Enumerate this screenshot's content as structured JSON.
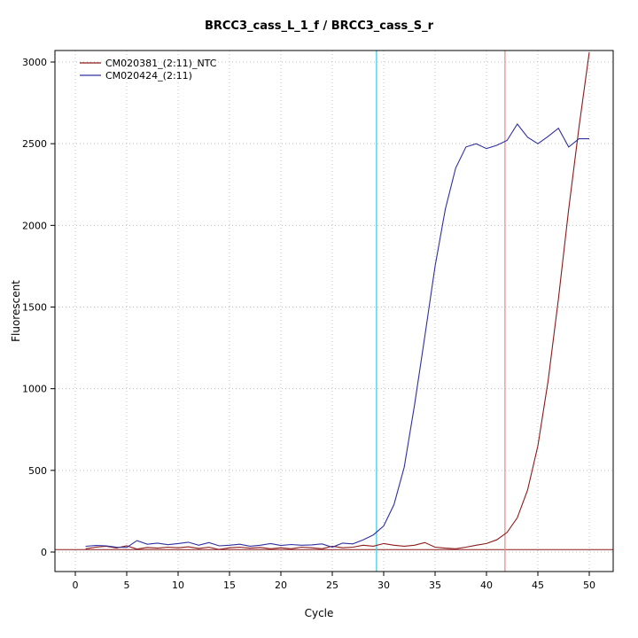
{
  "chart_data": {
    "type": "line",
    "title": "BRCC3_cass_L_1_f / BRCC3_cass_S_r",
    "xlabel": "Cycle",
    "ylabel": "Fluorescent",
    "xlim": [
      0,
      50
    ],
    "ylim": [
      0,
      3000
    ],
    "xticks": [
      0,
      5,
      10,
      15,
      20,
      25,
      30,
      35,
      40,
      45,
      50
    ],
    "yticks": [
      0,
      500,
      1000,
      1500,
      2000,
      2500,
      3000
    ],
    "grid": true,
    "legend_position": "top-left",
    "x": [
      1,
      2,
      3,
      4,
      5,
      6,
      7,
      8,
      9,
      10,
      11,
      12,
      13,
      14,
      15,
      16,
      17,
      18,
      19,
      20,
      21,
      22,
      23,
      24,
      25,
      26,
      27,
      28,
      29,
      30,
      31,
      32,
      33,
      34,
      35,
      36,
      37,
      38,
      39,
      40,
      41,
      42,
      43,
      44,
      45,
      46,
      47,
      48,
      49,
      50
    ],
    "series": [
      {
        "name": "CM020381_(2:11)_NTC",
        "color": "#8b1a1a",
        "values": [
          20,
          30,
          35,
          25,
          38,
          18,
          28,
          24,
          30,
          26,
          32,
          22,
          30,
          16,
          26,
          30,
          24,
          28,
          20,
          26,
          20,
          30,
          26,
          20,
          36,
          26,
          30,
          42,
          36,
          52,
          42,
          36,
          42,
          58,
          30,
          24,
          20,
          30,
          42,
          52,
          75,
          120,
          210,
          380,
          650,
          1050,
          1550,
          2100,
          2600,
          3060
        ]
      },
      {
        "name": "CM020424_(2:11)",
        "color": "#3030a0",
        "values": [
          35,
          40,
          38,
          30,
          28,
          70,
          48,
          55,
          45,
          52,
          60,
          42,
          58,
          38,
          42,
          48,
          36,
          42,
          52,
          40,
          46,
          42,
          44,
          50,
          30,
          55,
          50,
          75,
          105,
          160,
          290,
          520,
          900,
          1320,
          1750,
          2100,
          2350,
          2480,
          2500,
          2470,
          2490,
          2520,
          2620,
          2540,
          2500,
          2545,
          2595,
          2480,
          2530,
          2530
        ]
      }
    ],
    "vlines": [
      {
        "x": 29.3,
        "color": "#3fd0e8",
        "label": "threshold-cycle-blue"
      },
      {
        "x": 41.8,
        "color": "#e89090",
        "label": "threshold-cycle-red"
      }
    ],
    "hlines": [
      {
        "y": 15,
        "color": "#8b1a1a",
        "label": "fluorescence-threshold"
      }
    ]
  }
}
